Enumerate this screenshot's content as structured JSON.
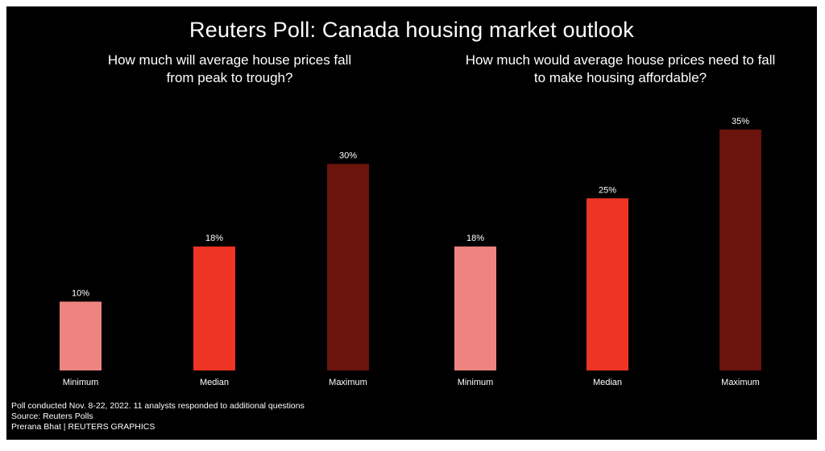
{
  "title": "Reuters Poll: Canada housing market outlook",
  "footer": {
    "note": "Poll conducted Nov. 8-22, 2022. 11 analysts responded to additional questions",
    "source": "Source: Reuters Polls",
    "credit": "Prerana Bhat | REUTERS GRAPHICS"
  },
  "colors": {
    "background": "#000000",
    "minimum": "#ee8480",
    "median": "#ee3424",
    "maximum": "#6b130d",
    "text": "#ffffff"
  },
  "chart_data": [
    {
      "type": "bar",
      "title": "How much will average house prices fall\nfrom peak to trough?",
      "categories": [
        "Minimum",
        "Median",
        "Maximum"
      ],
      "values": [
        10,
        18,
        30
      ],
      "value_labels": [
        "10%",
        "18%",
        "30%"
      ],
      "unit": "%",
      "ylim": [
        0,
        35
      ],
      "grid": false
    },
    {
      "type": "bar",
      "title": "How much would average house prices need to fall\nto make housing affordable?",
      "categories": [
        "Minimum",
        "Median",
        "Maximum"
      ],
      "values": [
        18,
        25,
        35
      ],
      "value_labels": [
        "18%",
        "25%",
        "35%"
      ],
      "unit": "%",
      "ylim": [
        0,
        35
      ],
      "grid": false
    }
  ]
}
